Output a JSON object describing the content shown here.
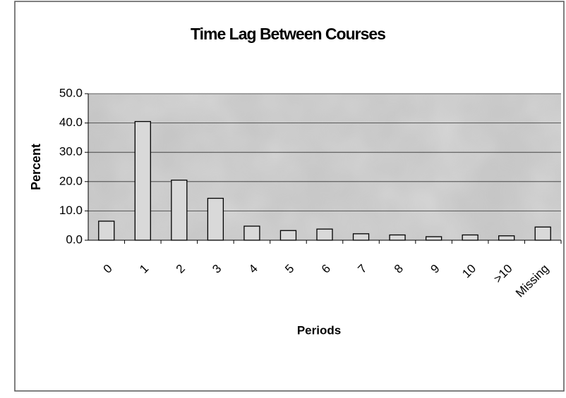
{
  "chart_data": {
    "type": "bar",
    "title": "Time Lag Between Courses",
    "x_label": "Periods",
    "y_label": "Percent",
    "categories": [
      "0",
      "1",
      "2",
      "3",
      "4",
      "5",
      "6",
      "7",
      "8",
      "9",
      "10",
      ">10",
      "Missing"
    ],
    "values": [
      6.5,
      40.5,
      20.5,
      14.3,
      4.8,
      3.3,
      3.8,
      2.2,
      1.8,
      1.2,
      1.8,
      1.5,
      4.5
    ],
    "color": "#d9d9d9",
    "ylim": [
      0,
      50
    ],
    "yticks": [
      {
        "value": 0,
        "label": "0.0"
      },
      {
        "value": 10,
        "label": "10.0"
      },
      {
        "value": 20,
        "label": "20.0"
      },
      {
        "value": 30,
        "label": "30.0"
      },
      {
        "value": 40,
        "label": "40.0"
      },
      {
        "value": 50,
        "label": "50.0"
      }
    ],
    "grid": true
  }
}
